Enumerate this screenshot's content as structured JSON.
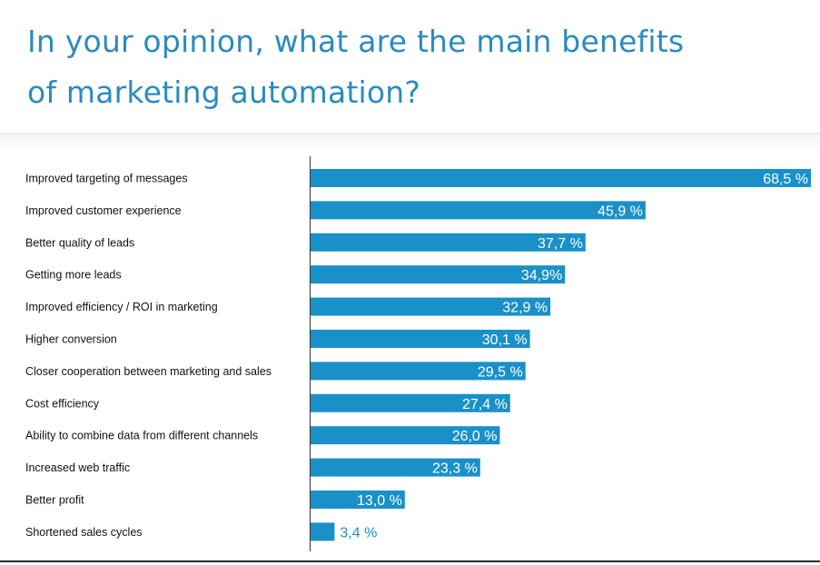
{
  "title": {
    "line1": "In your opinion, what are the main benefits",
    "line2": "of marketing automation?"
  },
  "colors": {
    "title": "#2a8bbf",
    "bar": "#1a90c8",
    "axis": "#333333"
  },
  "chart_data": {
    "type": "bar",
    "orientation": "horizontal",
    "title": "In your opinion, what are the main benefits of marketing automation?",
    "xlabel": "",
    "ylabel": "",
    "xlim": [
      0,
      68.5
    ],
    "grid": false,
    "legend": "none",
    "categories": [
      "Improved targeting of messages",
      "Improved customer experience",
      "Better quality of leads",
      "Getting more leads",
      "Improved efficiency / ROI in marketing",
      "Higher conversion",
      "Closer cooperation between marketing and sales",
      "Cost efficiency",
      "Ability to combine data from different channels",
      "Increased web traffic",
      "Better profit",
      "Shortened sales cycles"
    ],
    "values": [
      68.5,
      45.9,
      37.7,
      34.9,
      32.9,
      30.1,
      29.5,
      27.4,
      26.0,
      23.3,
      13.0,
      3.4
    ],
    "value_labels": [
      "68,5 %",
      "45,9 %",
      "37,7 %",
      "34,9%",
      "32,9 %",
      "30,1 %",
      "29,5 %",
      "27,4 %",
      "26,0 %",
      "23,3 %",
      "13,0 %",
      "3,4 %"
    ]
  }
}
